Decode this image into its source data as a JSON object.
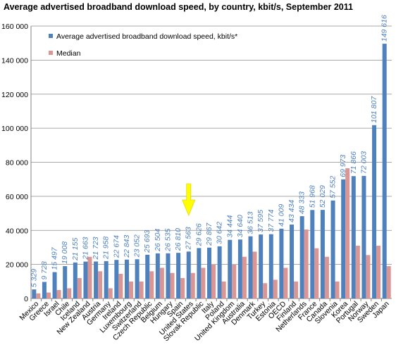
{
  "chart_data": {
    "type": "bar",
    "title": "Average advertised broadband download speed, by country, kbit/s, September 2011",
    "xlabel": "",
    "ylabel": "",
    "ylim": [
      0,
      160000
    ],
    "yticks": [
      "0",
      "20 000",
      "40 000",
      "60 000",
      "80 000",
      "100 000",
      "120 000",
      "140 000",
      "160 000"
    ],
    "grid": true,
    "legend_position": "top-left",
    "highlight": {
      "category": "United States",
      "marker": "yellow-arrow"
    },
    "categories": [
      "Mexico",
      "Greece",
      "Israel",
      "Chile",
      "Iceland",
      "New Zealand",
      "Austria",
      "Germany",
      "Ireland",
      "Luxembourg",
      "Switzerland",
      "Czech Republic",
      "Belgium",
      "Hungary",
      "Spain",
      "United States",
      "Slovak Republic",
      "Italy",
      "Poland",
      "United Kingdom",
      "Australia",
      "Denmark",
      "Turkey",
      "Estonia",
      "OECD",
      "Finland",
      "Netherlands",
      "France",
      "Canada",
      "Slovenia",
      "Korea",
      "Portugal",
      "Norway",
      "Sweden",
      "Japan"
    ],
    "series": [
      {
        "name": "Average advertised broadband download speed, kbit/s*",
        "color": "#4f81bd",
        "values": [
          5329,
          9728,
          15497,
          19008,
          21155,
          21663,
          21723,
          21958,
          22674,
          22843,
          23052,
          25693,
          26504,
          26535,
          26810,
          27563,
          29626,
          29867,
          30642,
          34444,
          34640,
          36513,
          37595,
          37774,
          41009,
          43434,
          48333,
          51968,
          52029,
          57552,
          69973,
          71866,
          72003,
          101807,
          149616
        ],
        "labels": [
          "5 329",
          "9 728",
          "15 497",
          "19 008",
          "21 155",
          "21 663",
          "21 723",
          "21 958",
          "22 674",
          "22 843",
          "23 052",
          "25 693",
          "26 504",
          "26 535",
          "26 810",
          "27 563",
          "29 626",
          "29 867",
          "30 642",
          "34 444",
          "34 640",
          "36 513",
          "37 595",
          "37 774",
          "41 009",
          "43 434",
          "48 333",
          "51 968",
          "52 029",
          "57 552",
          "69 973",
          "71 866",
          "72 003",
          "101 807",
          "149 616"
        ]
      },
      {
        "name": "Median",
        "color": "#d99694",
        "values": [
          3000,
          3500,
          5000,
          6000,
          12000,
          24500,
          16000,
          6000,
          14500,
          10000,
          10000,
          16000,
          18000,
          15000,
          12000,
          15000,
          18000,
          20000,
          10000,
          20000,
          24500,
          27500,
          9000,
          11000,
          18000,
          10000,
          40500,
          29500,
          24500,
          10000,
          76500,
          31000,
          25500,
          31000,
          19000
        ]
      }
    ]
  }
}
